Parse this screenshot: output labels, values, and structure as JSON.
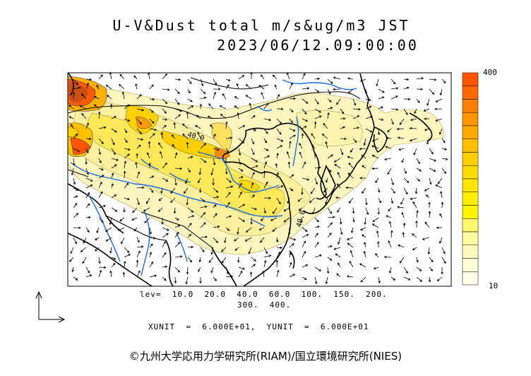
{
  "title_line1": "U-V&Dust  total  m/s&ug/m3  JST",
  "title_line2": "2023/06/12.09:00:00",
  "contour_label": "40.0",
  "lev_line1": "lev=  10.0  20.0  40.0  60.0  100.  150.  200.",
  "lev_line2": "300.  400.",
  "units_text": "XUNIT  =  6.000E+01,  YUNIT  =  6.000E+01",
  "credit": "©九州大学応用力学研究所(RIAM)/国立環境研究所(NIES)",
  "colorbar": {
    "max_label": "400",
    "min_label": "10",
    "colors": [
      "#ff5500",
      "#ff6a00",
      "#ff8000",
      "#ff9500",
      "#ffaa00",
      "#ffbf00",
      "#ffd000",
      "#ffdc00",
      "#ffe600",
      "#ffef00",
      "#fff500",
      "#fff870",
      "#fff9a0",
      "#fffbc0",
      "#fffcd8",
      "#fffdea"
    ]
  },
  "colors": {
    "coast": "#000000",
    "river": "#1f6be0",
    "dust_light": "#fff4b0",
    "dust_mid": "#ffe94a",
    "dust_high": "#ffb300",
    "dust_max": "#ff4d00"
  }
}
